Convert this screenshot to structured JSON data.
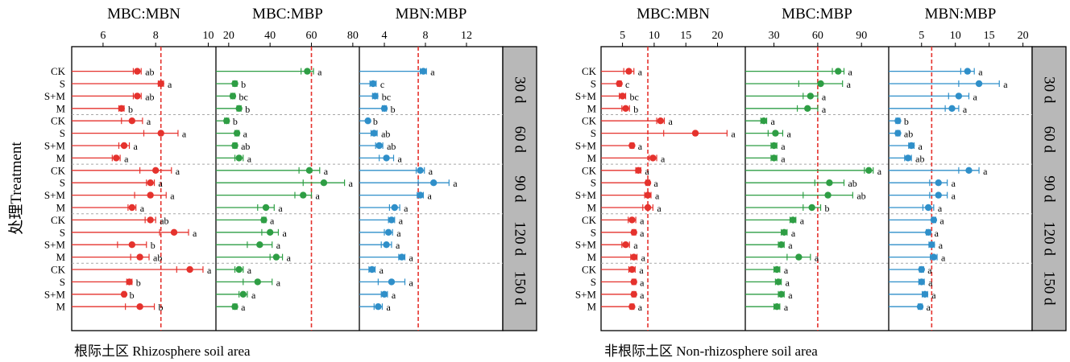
{
  "chart_data": {
    "type": "dot-with-error-bars",
    "ylabel": "处理Treatment",
    "categories": [
      "CK",
      "S",
      "S+M",
      "M"
    ],
    "periods": [
      "30 d",
      "60 d",
      "90 d",
      "120 d",
      "150 d"
    ],
    "colors": {
      "MBC:MBN": "#e5322d",
      "MBC:MBP": "#2e9e44",
      "MBN:MBP": "#2f8fc9",
      "reference_line": "#e5322d",
      "band": "#b8b8b8",
      "divider": "#a8a8a8"
    },
    "panels": [
      {
        "caption": "根际土区 Rhizosphere soil area",
        "subplots": [
          {
            "title": "MBC:MBN",
            "xlim": [
              4.9,
              10.2
            ],
            "ticks": [
              6,
              8,
              10
            ],
            "ref": 8.2,
            "series": [
              {
                "period": "30 d",
                "values": [
                  7.3,
                  8.2,
                  7.3,
                  6.7
                ],
                "err": [
                  0.15,
                  0.1,
                  0.15,
                  0.1
                ],
                "letters": [
                  "ab",
                  "a",
                  "ab",
                  "b"
                ]
              },
              {
                "period": "60 d",
                "values": [
                  7.1,
                  8.2,
                  6.8,
                  6.5
                ],
                "err": [
                  0.4,
                  0.65,
                  0.2,
                  0.15
                ],
                "letters": [
                  "a",
                  "a",
                  "a",
                  "a"
                ]
              },
              {
                "period": "90 d",
                "values": [
                  8.0,
                  7.8,
                  7.8,
                  7.1
                ],
                "err": [
                  0.6,
                  0.15,
                  0.6,
                  0.15
                ],
                "letters": [
                  "a",
                  "a",
                  "a",
                  "a"
                ]
              },
              {
                "period": "120 d",
                "values": [
                  7.8,
                  8.7,
                  7.1,
                  7.4
                ],
                "err": [
                  0.2,
                  0.55,
                  0.55,
                  0.35
                ],
                "letters": [
                  "ab",
                  "a",
                  "b",
                  "ab"
                ]
              },
              {
                "period": "150 d",
                "values": [
                  9.3,
                  7.0,
                  6.8,
                  7.4
                ],
                "err": [
                  0.5,
                  0.1,
                  0.05,
                  0.55
                ],
                "letters": [
                  "a",
                  "b",
                  "b",
                  "b"
                ]
              }
            ]
          },
          {
            "title": "MBC:MBP",
            "xlim": [
              15,
              82
            ],
            "ticks": [
              20,
              40,
              60,
              80
            ],
            "ref": 60,
            "series": [
              {
                "period": "30 d",
                "values": [
                  58,
                  23,
                  22,
                  25
                ],
                "err": [
                  3,
                  1,
                  1,
                  1
                ],
                "letters": [
                  "a",
                  "b",
                  "bc",
                  "b"
                ]
              },
              {
                "period": "60 d",
                "values": [
                  19,
                  24,
                  23,
                  25
                ],
                "err": [
                  1,
                  1,
                  1,
                  2
                ],
                "letters": [
                  "b",
                  "a",
                  "ab",
                  "a"
                ]
              },
              {
                "period": "90 d",
                "values": [
                  59,
                  66,
                  56,
                  38
                ],
                "err": [
                  5,
                  10,
                  4,
                  4
                ],
                "letters": [
                  "a",
                  "a",
                  "a",
                  "a"
                ]
              },
              {
                "period": "120 d",
                "values": [
                  37,
                  40,
                  35,
                  43
                ],
                "err": [
                  1,
                  4,
                  6,
                  3
                ],
                "letters": [
                  "a",
                  "a",
                  "a",
                  "a"
                ]
              },
              {
                "period": "150 d",
                "values": [
                  25,
                  34,
                  27,
                  23
                ],
                "err": [
                  2,
                  7,
                  2,
                  1
                ],
                "letters": [
                  "a",
                  "a",
                  "a",
                  "a"
                ]
              }
            ]
          },
          {
            "title": "MBN:MBP",
            "xlim": [
              1.8,
              15.3
            ],
            "ticks": [
              4,
              8,
              12
            ],
            "ref": 7.3,
            "series": [
              {
                "period": "30 d",
                "values": [
                  7.8,
                  2.9,
                  3.1,
                  4.0
                ],
                "err": [
                  0.3,
                  0.3,
                  0.25,
                  0.2
                ],
                "letters": [
                  "a",
                  "c",
                  "bc",
                  "b"
                ]
              },
              {
                "period": "60 d",
                "values": [
                  2.4,
                  3.0,
                  3.5,
                  4.2
                ],
                "err": [
                  0.1,
                  0.3,
                  0.35,
                  0.7
                ],
                "letters": [
                  "b",
                  "ab",
                  "ab",
                  "a"
                ]
              },
              {
                "period": "90 d",
                "values": [
                  7.5,
                  8.8,
                  7.5,
                  5.0
                ],
                "err": [
                  0.4,
                  1.5,
                  0.3,
                  0.5
                ],
                "letters": [
                  "a",
                  "a",
                  "a",
                  "a"
                ]
              },
              {
                "period": "120 d",
                "values": [
                  4.7,
                  4.4,
                  4.2,
                  5.7
                ],
                "err": [
                  0.3,
                  0.4,
                  0.5,
                  0.3
                ],
                "letters": [
                  "a",
                  "a",
                  "a",
                  "a"
                ]
              },
              {
                "period": "150 d",
                "values": [
                  2.8,
                  4.7,
                  4.0,
                  3.4
                ],
                "err": [
                  0.3,
                  1.3,
                  0.3,
                  0.4
                ],
                "letters": [
                  "a",
                  "a",
                  "a",
                  "a"
                ]
              }
            ]
          }
        ]
      },
      {
        "caption": "非根际土区 Non-rhizosphere soil area",
        "subplots": [
          {
            "title": "MBC:MBN",
            "xlim": [
              2.0,
              24.0
            ],
            "ticks": [
              5,
              10,
              15,
              20
            ],
            "ref": 9.0,
            "series": [
              {
                "period": "30 d",
                "values": [
                  6.0,
                  4.5,
                  5.0,
                  5.5
                ],
                "err": [
                  0.8,
                  0.3,
                  0.5,
                  0.6
                ],
                "letters": [
                  "a",
                  "c",
                  "bc",
                  "b"
                ]
              },
              {
                "period": "60 d",
                "values": [
                  11.0,
                  16.5,
                  6.5,
                  9.8
                ],
                "err": [
                  0.6,
                  5.0,
                  0.3,
                  0.6
                ],
                "letters": [
                  "a",
                  "a",
                  "a",
                  "a"
                ]
              },
              {
                "period": "90 d",
                "values": [
                  7.5,
                  9.0,
                  9.0,
                  9.0
                ],
                "err": [
                  0.4,
                  0.3,
                  0.5,
                  0.8
                ],
                "letters": [
                  "a",
                  "a",
                  "a",
                  "a"
                ]
              },
              {
                "period": "120 d",
                "values": [
                  6.5,
                  6.8,
                  5.5,
                  6.8
                ],
                "err": [
                  0.6,
                  0.3,
                  0.6,
                  0.5
                ],
                "letters": [
                  "a",
                  "a",
                  "a",
                  "a"
                ]
              },
              {
                "period": "150 d",
                "values": [
                  6.5,
                  6.8,
                  6.8,
                  6.5
                ],
                "err": [
                  0.5,
                  0.3,
                  0.3,
                  0.3
                ],
                "letters": [
                  "a",
                  "a",
                  "a",
                  "a"
                ]
              }
            ]
          },
          {
            "title": "MBC:MBP",
            "xlim": [
              12,
              107
            ],
            "ticks": [
              30,
              60,
              90
            ],
            "ref": 60,
            "series": [
              {
                "period": "30 d",
                "values": [
                  74,
                  62,
                  55,
                  53
                ],
                "err": [
                  4,
                  15,
                  5,
                  7
                ],
                "letters": [
                  "a",
                  "a",
                  "a",
                  "a"
                ]
              },
              {
                "period": "60 d",
                "values": [
                  23,
                  31,
                  30,
                  30
                ],
                "err": [
                  2,
                  5,
                  2,
                  2
                ],
                "letters": [
                  "a",
                  "a",
                  "a",
                  "a"
                ]
              },
              {
                "period": "90 d",
                "values": [
                  95,
                  68,
                  67,
                  56
                ],
                "err": [
                  3,
                  10,
                  17,
                  6
                ],
                "letters": [
                  "a",
                  "ab",
                  "ab",
                  "b"
                ]
              },
              {
                "period": "120 d",
                "values": [
                  43,
                  37,
                  35,
                  47
                ],
                "err": [
                  2,
                  2,
                  2,
                  8
                ],
                "letters": [
                  "a",
                  "a",
                  "a",
                  "a"
                ]
              },
              {
                "period": "150 d",
                "values": [
                  32,
                  33,
                  35,
                  32
                ],
                "err": [
                  2,
                  2,
                  2,
                  2
                ],
                "letters": [
                  "a",
                  "a",
                  "a",
                  "a"
                ]
              }
            ]
          },
          {
            "title": "MBN:MBP",
            "xlim": [
              0.5,
              21.0
            ],
            "ticks": [
              5,
              10,
              15,
              20
            ],
            "ref": 6.5,
            "series": [
              {
                "period": "30 d",
                "values": [
                  11.8,
                  13.5,
                  10.5,
                  9.5
                ],
                "err": [
                  1.0,
                  3.0,
                  1.5,
                  1.0
                ],
                "letters": [
                  "a",
                  "a",
                  "a",
                  "a"
                ]
              },
              {
                "period": "60 d",
                "values": [
                  1.5,
                  1.5,
                  3.5,
                  3.0
                ],
                "err": [
                  0.3,
                  0.3,
                  0.4,
                  0.5
                ],
                "letters": [
                  "b",
                  "ab",
                  "a",
                  "ab"
                ]
              },
              {
                "period": "90 d",
                "values": [
                  12.0,
                  7.5,
                  7.5,
                  6.0
                ],
                "err": [
                  1.5,
                  1.3,
                  1.3,
                  0.8
                ],
                "letters": [
                  "a",
                  "a",
                  "a",
                  "a"
                ]
              },
              {
                "period": "120 d",
                "values": [
                  6.8,
                  6.0,
                  6.5,
                  6.8
                ],
                "err": [
                  0.3,
                  0.3,
                  0.4,
                  0.5
                ],
                "letters": [
                  "a",
                  "a",
                  "a",
                  "a"
                ]
              },
              {
                "period": "150 d",
                "values": [
                  5.0,
                  5.0,
                  5.5,
                  4.8
                ],
                "err": [
                  0.3,
                  0.4,
                  0.4,
                  0.3
                ],
                "letters": [
                  "a",
                  "a",
                  "a",
                  "a"
                ]
              }
            ]
          }
        ]
      }
    ]
  }
}
